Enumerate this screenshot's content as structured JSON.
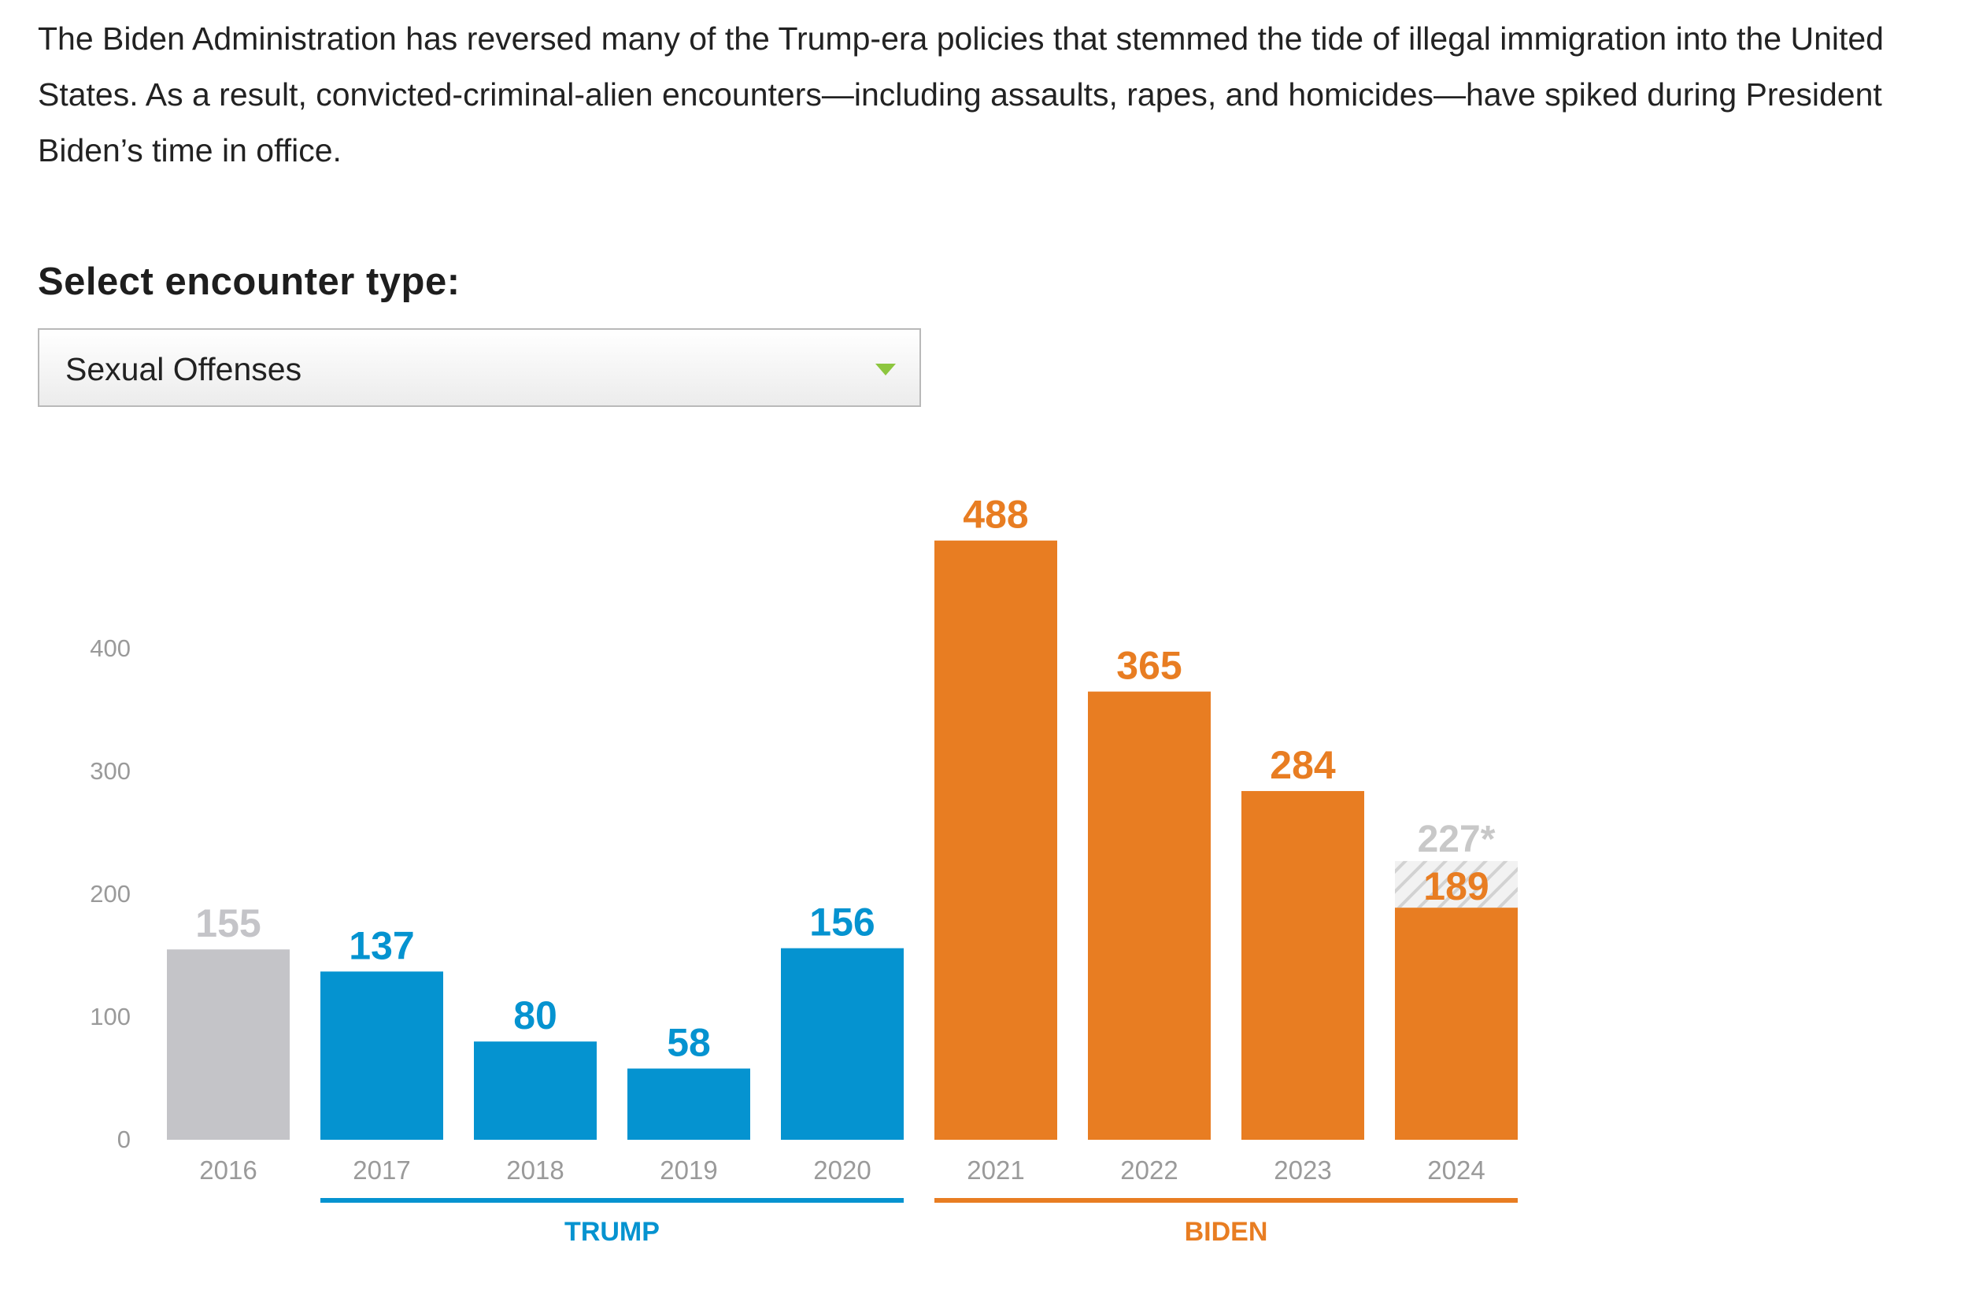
{
  "intro_text": "The Biden Administration has reversed many of the Trump-era policies that stemmed the tide of illegal immigration into the United States. As a result, convicted-criminal-alien encounters—including assaults, rapes, and homicides—have spiked during President Biden’s time in office.",
  "selector": {
    "label": "Select encounter type:",
    "selected": "Sexual Offenses",
    "arrow_icon": "caret-down-icon",
    "arrow_color": "#8dc63f"
  },
  "chart_data": {
    "type": "bar",
    "categories": [
      "2016",
      "2017",
      "2018",
      "2019",
      "2020",
      "2021",
      "2022",
      "2023",
      "2024"
    ],
    "values": [
      155,
      137,
      80,
      58,
      156,
      488,
      365,
      284,
      189
    ],
    "value_labels": [
      "155",
      "137",
      "80",
      "58",
      "156",
      "488",
      "365",
      "284",
      "189"
    ],
    "bar_colors": [
      "#c4c4c8",
      "#0593d0",
      "#0593d0",
      "#0593d0",
      "#0593d0",
      "#e87d22",
      "#e87d22",
      "#e87d22",
      "#e87d22"
    ],
    "projection": {
      "category": "2024",
      "value": 227,
      "label": "227*",
      "label_color": "#c8c8c8",
      "fill": "hatched"
    },
    "ylim": [
      0,
      400
    ],
    "yticks": [
      "0",
      "100",
      "200",
      "300",
      "400"
    ],
    "grid": false,
    "groups": [
      {
        "name": "TRUMP",
        "categories": [
          "2017",
          "2018",
          "2019",
          "2020"
        ],
        "color": "#0593d0"
      },
      {
        "name": "BIDEN",
        "categories": [
          "2021",
          "2022",
          "2023",
          "2024"
        ],
        "color": "#e87d22"
      }
    ],
    "title": "",
    "xlabel": "",
    "ylabel": ""
  }
}
